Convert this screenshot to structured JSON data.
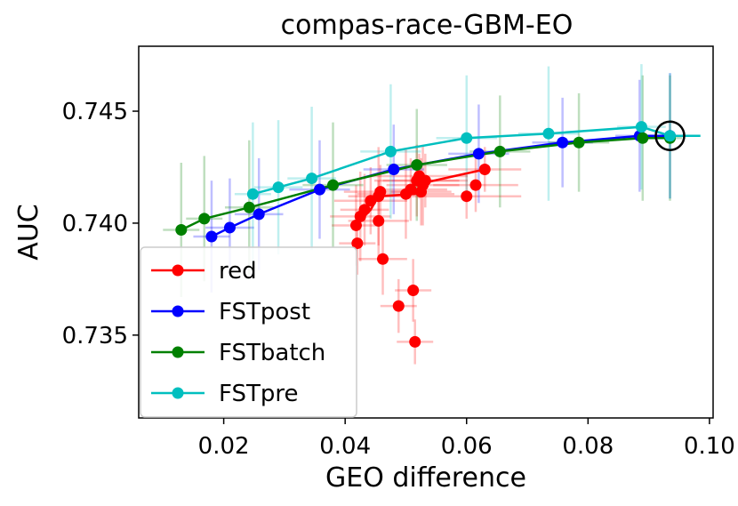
{
  "chart_data": {
    "type": "line",
    "title": "compas-race-GBM-EO",
    "xlabel": "GEO difference",
    "ylabel": "AUC",
    "xlim": [
      0.006,
      0.1006
    ],
    "ylim": [
      0.7313,
      0.7479
    ],
    "xticks": [
      0.02,
      0.04,
      0.06,
      0.08,
      0.1
    ],
    "xtick_labels": [
      "0.02",
      "0.04",
      "0.06",
      "0.08",
      "0.10"
    ],
    "yticks": [
      0.735,
      0.74,
      0.745
    ],
    "ytick_labels": [
      "0.735",
      "0.740",
      "0.745"
    ],
    "grid": false,
    "legend_position": "lower-left",
    "highlight": {
      "x": 0.0935,
      "y": 0.7439,
      "marker": "open-circle"
    },
    "series": [
      {
        "name": "red",
        "color": "#ff0000",
        "line": [
          [
            0.0418,
            0.7399
          ],
          [
            0.0442,
            0.7406
          ],
          [
            0.0455,
            0.7412
          ],
          [
            0.0515,
            0.7413
          ],
          [
            0.053,
            0.7418
          ],
          [
            0.058,
            0.7421
          ],
          [
            0.063,
            0.7424
          ]
        ],
        "points": [
          [
            0.0418,
            0.7399
          ],
          [
            0.0425,
            0.7403
          ],
          [
            0.0432,
            0.7406
          ],
          [
            0.0442,
            0.741
          ],
          [
            0.0455,
            0.7412
          ],
          [
            0.0458,
            0.7414
          ],
          [
            0.0455,
            0.7401
          ],
          [
            0.042,
            0.7391
          ],
          [
            0.0462,
            0.7384
          ],
          [
            0.05,
            0.7413
          ],
          [
            0.0508,
            0.7415
          ],
          [
            0.0518,
            0.7419
          ],
          [
            0.0522,
            0.7421
          ],
          [
            0.0528,
            0.7417
          ],
          [
            0.0532,
            0.7419
          ],
          [
            0.0525,
            0.7414
          ],
          [
            0.06,
            0.7412
          ],
          [
            0.0615,
            0.7417
          ],
          [
            0.063,
            0.7424
          ],
          [
            0.0512,
            0.737
          ],
          [
            0.0488,
            0.7363
          ],
          [
            0.0515,
            0.7347
          ]
        ],
        "xerr": [
          0.004,
          0.005,
          0.004,
          0.006,
          0.005,
          0.006,
          0.005,
          0.003,
          0.004,
          0.008,
          0.006,
          0.007,
          0.008,
          0.006,
          0.007,
          0.005,
          0.009,
          0.007,
          0.006,
          0.003,
          0.003,
          0.003
        ],
        "yerr": [
          0.0018,
          0.002,
          0.0016,
          0.0015,
          0.0022,
          0.0012,
          0.0018,
          0.0014,
          0.0016,
          0.002,
          0.0014,
          0.0016,
          0.001,
          0.0018,
          0.0012,
          0.0015,
          0.001,
          0.0012,
          0.001,
          0.0014,
          0.0012,
          0.001
        ]
      },
      {
        "name": "FSTpost",
        "color": "#0000ff",
        "line": [
          [
            0.018,
            0.7394
          ],
          [
            0.021,
            0.7398
          ],
          [
            0.0258,
            0.7404
          ],
          [
            0.0358,
            0.7415
          ],
          [
            0.048,
            0.7424
          ],
          [
            0.062,
            0.7431
          ],
          [
            0.0758,
            0.7436
          ],
          [
            0.0885,
            0.7439
          ],
          [
            0.0935,
            0.7439
          ]
        ],
        "points": [
          [
            0.018,
            0.7394
          ],
          [
            0.021,
            0.7398
          ],
          [
            0.0258,
            0.7404
          ],
          [
            0.0358,
            0.7415
          ],
          [
            0.048,
            0.7424
          ],
          [
            0.062,
            0.7431
          ],
          [
            0.0758,
            0.7436
          ],
          [
            0.0885,
            0.7439
          ],
          [
            0.0935,
            0.7439
          ]
        ],
        "xerr": [
          0.003,
          0.004,
          0.004,
          0.005,
          0.005,
          0.005,
          0.005,
          0.004,
          0.002
        ],
        "yerr": [
          0.0025,
          0.0022,
          0.0025,
          0.0022,
          0.002,
          0.0022,
          0.002,
          0.0025,
          0.0028
        ]
      },
      {
        "name": "FSTbatch",
        "color": "#008000",
        "line": [
          [
            0.013,
            0.7397
          ],
          [
            0.0168,
            0.7402
          ],
          [
            0.0242,
            0.7407
          ],
          [
            0.038,
            0.7417
          ],
          [
            0.0518,
            0.7426
          ],
          [
            0.0655,
            0.7432
          ],
          [
            0.0785,
            0.7436
          ],
          [
            0.089,
            0.7438
          ],
          [
            0.0935,
            0.7438
          ]
        ],
        "points": [
          [
            0.013,
            0.7397
          ],
          [
            0.0168,
            0.7402
          ],
          [
            0.0242,
            0.7407
          ],
          [
            0.038,
            0.7417
          ],
          [
            0.0518,
            0.7426
          ],
          [
            0.0655,
            0.7432
          ],
          [
            0.0785,
            0.7436
          ],
          [
            0.089,
            0.7438
          ],
          [
            0.0935,
            0.7438
          ]
        ],
        "xerr": [
          0.003,
          0.003,
          0.004,
          0.005,
          0.005,
          0.005,
          0.005,
          0.004,
          0.002
        ],
        "yerr": [
          0.003,
          0.0028,
          0.003,
          0.0028,
          0.0025,
          0.0025,
          0.0022,
          0.0028,
          0.0028
        ]
      },
      {
        "name": "FSTpre",
        "color": "#00bfbf",
        "line": [
          [
            0.0248,
            0.7413
          ],
          [
            0.029,
            0.7416
          ],
          [
            0.0345,
            0.742
          ],
          [
            0.0475,
            0.7432
          ],
          [
            0.06,
            0.7438
          ],
          [
            0.0735,
            0.744
          ],
          [
            0.0888,
            0.7443
          ],
          [
            0.0935,
            0.7439
          ],
          [
            0.0985,
            0.7439
          ]
        ],
        "points": [
          [
            0.0248,
            0.7413
          ],
          [
            0.029,
            0.7416
          ],
          [
            0.0345,
            0.742
          ],
          [
            0.0475,
            0.7432
          ],
          [
            0.06,
            0.7438
          ],
          [
            0.0735,
            0.744
          ],
          [
            0.0888,
            0.7443
          ],
          [
            0.0935,
            0.7439
          ]
        ],
        "xerr": [
          0.003,
          0.004,
          0.004,
          0.005,
          0.005,
          0.005,
          0.004,
          0.005
        ],
        "yerr": [
          0.0032,
          0.003,
          0.0032,
          0.003,
          0.0028,
          0.003,
          0.0028,
          0.0028
        ]
      }
    ]
  }
}
